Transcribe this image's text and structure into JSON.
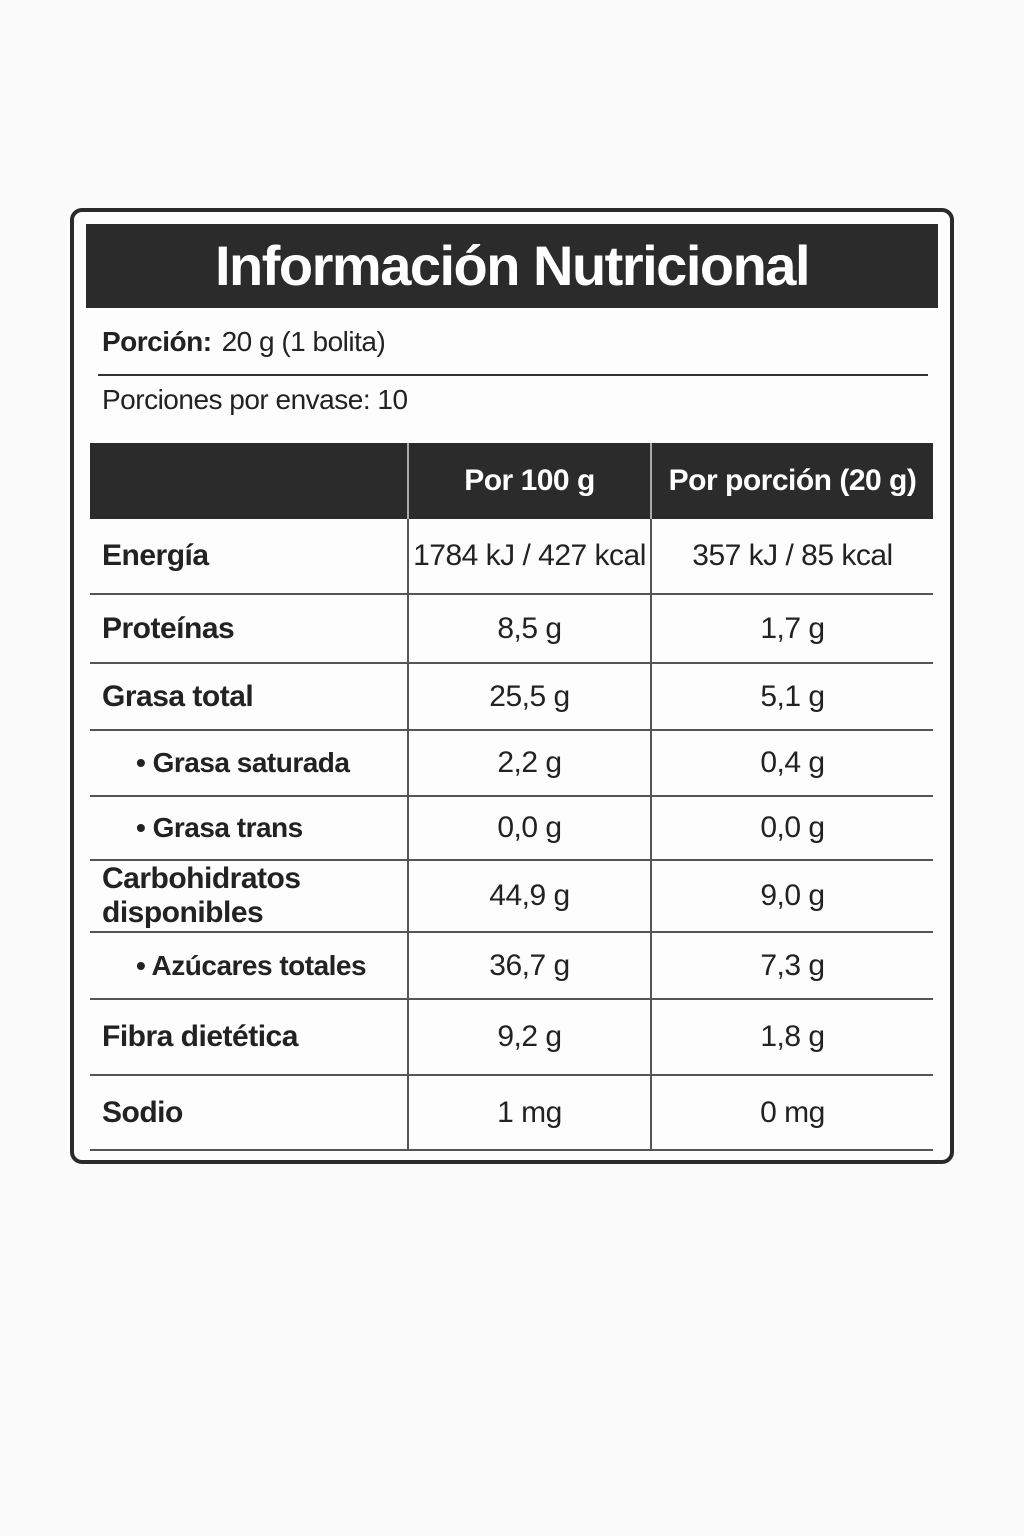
{
  "header": {
    "title": "Información Nutricional"
  },
  "serving": {
    "label": "Porción:",
    "value": "20 g (1 bolita)"
  },
  "servings_per_container": "Porciones por envase: 10",
  "table": {
    "columns": [
      "Por 100 g",
      "Por porción (20 g)"
    ],
    "rows": [
      [
        "Energía",
        "1784 kJ / 427 kcal",
        "357 kJ / 85 kcal"
      ],
      [
        "Proteínas",
        "8,5 g",
        "1,7 g"
      ],
      [
        "Grasa total",
        "25,5 g",
        "5,1 g"
      ],
      [
        "• Grasa saturada",
        "2,2 g",
        "0,4 g"
      ],
      [
        "• Grasa trans",
        "0,0 g",
        "0,0 g"
      ],
      [
        "Carbohidratos disponibles",
        "44,9 g",
        "9,0 g"
      ],
      [
        "• Azúcares totales",
        "36,7 g",
        "7,3 g"
      ],
      [
        "Fibra dietética",
        "9,2 g",
        "1,8 g"
      ],
      [
        "Sodio",
        "1 mg",
        "0 mg"
      ]
    ]
  }
}
